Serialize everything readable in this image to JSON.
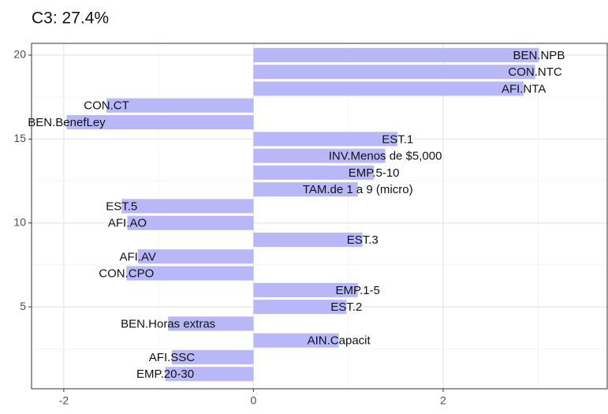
{
  "chart_data": {
    "type": "bar",
    "orientation": "horizontal",
    "title": "C3: 27.4%",
    "labels": [
      "BEN.NPB",
      "CON.NTC",
      "AFI.NTA",
      "CON.CT",
      "BEN.BenefLey",
      "EST.1",
      "INV.Menos de $5,000",
      "EMP.5-10",
      "TAM.de 1 a 9 (micro)",
      "EST.5",
      "AFI.AO",
      "EST.3",
      "AFI.AV",
      "CON.CPO",
      "EMP.1-5",
      "EST.2",
      "BEN.Horas extras",
      "AIN.Capacit",
      "AFI.SSC",
      "EMP.20-30"
    ],
    "y": [
      20,
      19,
      18,
      17,
      16,
      15,
      14,
      13,
      12,
      11,
      10,
      9,
      8,
      7,
      6,
      5,
      4,
      3,
      2,
      1
    ],
    "values": [
      3.01,
      2.97,
      2.85,
      -1.55,
      -1.97,
      1.52,
      1.39,
      1.27,
      1.1,
      -1.39,
      -1.33,
      1.15,
      -1.22,
      -1.34,
      1.1,
      0.98,
      -0.9,
      0.9,
      -0.86,
      -0.93
    ],
    "color": "#b8b8f8",
    "xlim": [
      -2.34,
      3.73
    ],
    "xticks": [
      -2,
      0,
      2
    ],
    "xminor": [
      -1,
      1,
      3
    ],
    "ylim": [
      0.12,
      20.7
    ],
    "yticks": [
      5,
      10,
      15,
      20
    ],
    "yminor": [
      2.5,
      7.5,
      12.5,
      17.5
    ],
    "grid": true
  }
}
